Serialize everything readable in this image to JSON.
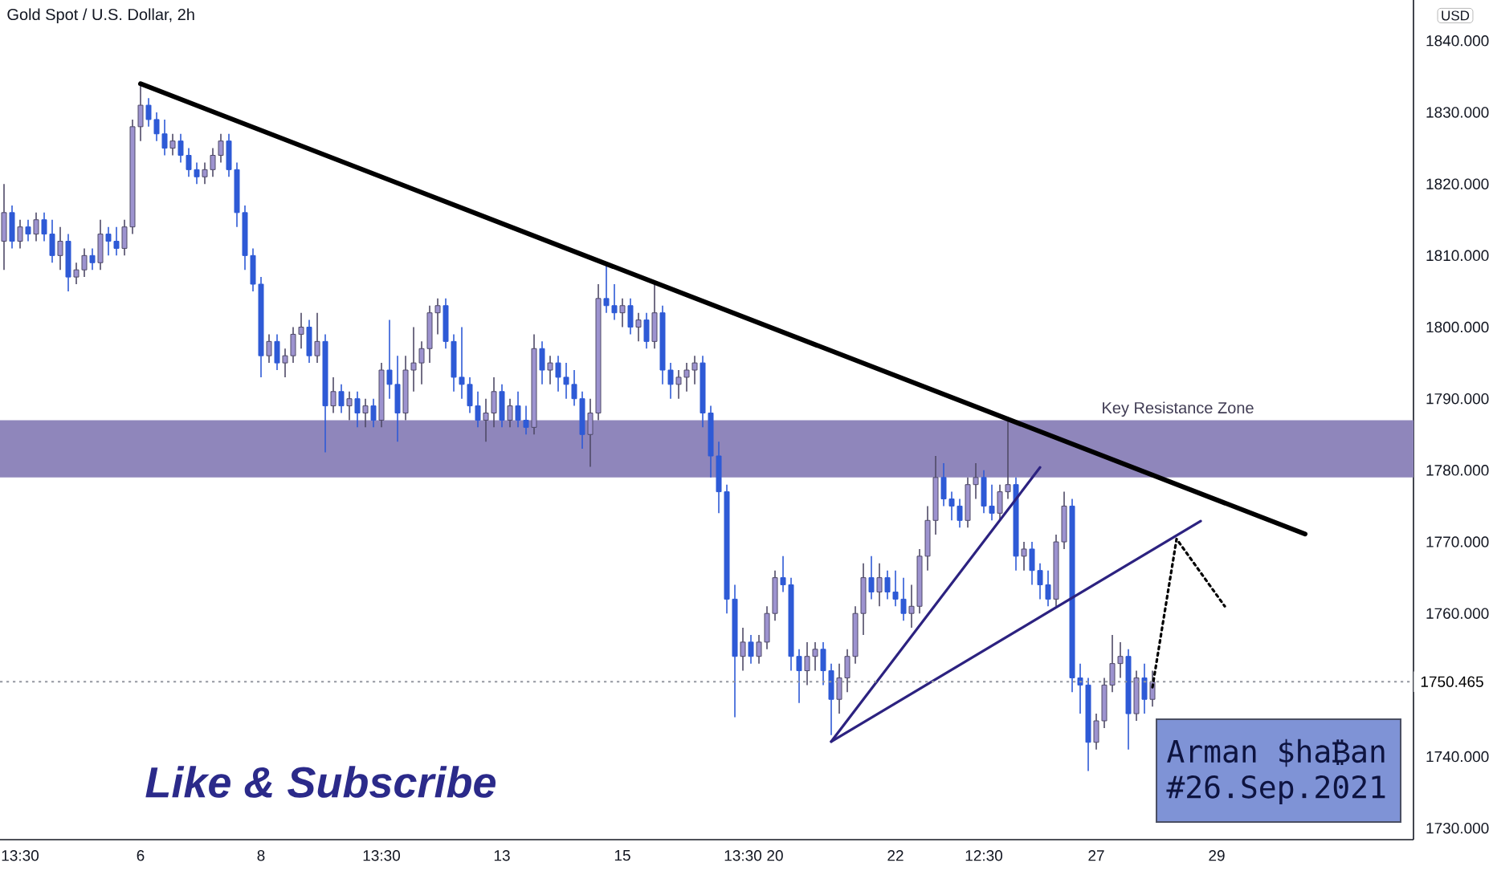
{
  "chart_data": {
    "type": "candlestick",
    "title": "Gold Spot / U.S. Dollar, 2h",
    "ylabel": "USD",
    "categories": [
      null,
      null,
      "13:30",
      null,
      null,
      null,
      null,
      null,
      null,
      null,
      null,
      null,
      null,
      null,
      null,
      null,
      null,
      "6",
      null,
      null,
      null,
      null,
      null,
      null,
      null,
      null,
      null,
      null,
      null,
      null,
      null,
      null,
      "8",
      null,
      null,
      null,
      null,
      null,
      null,
      null,
      null,
      null,
      null,
      null,
      null,
      null,
      null,
      "13:30",
      null,
      null,
      null,
      null,
      null,
      null,
      null,
      null,
      null,
      null,
      null,
      null,
      null,
      null,
      "13",
      null,
      null,
      null,
      null,
      null,
      null,
      null,
      null,
      null,
      null,
      null,
      null,
      null,
      null,
      "15",
      null,
      null,
      null,
      null,
      null,
      null,
      null,
      null,
      null,
      null,
      null,
      null,
      null,
      null,
      "13:30",
      null,
      null,
      null,
      "20",
      null,
      null,
      null,
      null,
      null,
      null,
      null,
      null,
      null,
      null,
      null,
      null,
      null,
      null,
      "22",
      null,
      null,
      null,
      null,
      null,
      null,
      null,
      null,
      null,
      null,
      "12:30",
      null,
      null,
      null,
      null,
      null,
      null,
      null,
      null,
      null,
      null,
      null,
      null,
      null,
      "27",
      null,
      null,
      null,
      null,
      null,
      null,
      null,
      null,
      null,
      null,
      null,
      null,
      null,
      null,
      "29",
      null,
      null,
      null,
      null,
      null,
      null,
      null,
      null,
      null,
      null,
      null,
      null,
      null,
      null,
      null,
      null,
      null,
      null,
      null,
      null,
      null,
      null,
      null,
      null
    ],
    "ohlc": [
      [
        1812,
        1820,
        1808,
        1816
      ],
      [
        1816,
        1817,
        1811,
        1812
      ],
      [
        1812,
        1815,
        1811,
        1814
      ],
      [
        1814,
        1815,
        1812,
        1813
      ],
      [
        1813,
        1816,
        1812,
        1815
      ],
      [
        1815,
        1816,
        1812,
        1813
      ],
      [
        1813,
        1815,
        1809,
        1810
      ],
      [
        1810,
        1814,
        1808,
        1812
      ],
      [
        1812,
        1813,
        1805,
        1807
      ],
      [
        1807,
        1809,
        1806,
        1808
      ],
      [
        1808,
        1811,
        1807,
        1810
      ],
      [
        1810,
        1811,
        1808,
        1809
      ],
      [
        1809,
        1815,
        1808,
        1813
      ],
      [
        1813,
        1814,
        1810,
        1812
      ],
      [
        1812,
        1814,
        1810,
        1811
      ],
      [
        1811,
        1815,
        1810,
        1814
      ],
      [
        1814,
        1829,
        1813,
        1828
      ],
      [
        1828,
        1834,
        1826,
        1831
      ],
      [
        1831,
        1832,
        1828,
        1829
      ],
      [
        1829,
        1830,
        1826,
        1827
      ],
      [
        1827,
        1829,
        1824,
        1825
      ],
      [
        1825,
        1827,
        1824,
        1826
      ],
      [
        1826,
        1827,
        1823,
        1824
      ],
      [
        1824,
        1825,
        1821,
        1822
      ],
      [
        1822,
        1823,
        1820,
        1821
      ],
      [
        1821,
        1823,
        1820,
        1822
      ],
      [
        1822,
        1825,
        1821,
        1824
      ],
      [
        1824,
        1827,
        1823,
        1826
      ],
      [
        1826,
        1827,
        1821,
        1822
      ],
      [
        1822,
        1823,
        1814,
        1816
      ],
      [
        1816,
        1817,
        1808,
        1810
      ],
      [
        1810,
        1811,
        1805,
        1806
      ],
      [
        1806,
        1807,
        1793,
        1796
      ],
      [
        1796,
        1799,
        1795,
        1798
      ],
      [
        1798,
        1799,
        1794,
        1795
      ],
      [
        1795,
        1797,
        1793,
        1796
      ],
      [
        1796,
        1800,
        1795,
        1799
      ],
      [
        1799,
        1802,
        1797,
        1800
      ],
      [
        1800,
        1801,
        1795,
        1796
      ],
      [
        1796,
        1802,
        1795,
        1798
      ],
      [
        1798,
        1799,
        1782.5,
        1789
      ],
      [
        1789,
        1793,
        1788,
        1791
      ],
      [
        1791,
        1792,
        1788,
        1789
      ],
      [
        1789,
        1791,
        1787,
        1790
      ],
      [
        1790,
        1791,
        1786,
        1788
      ],
      [
        1788,
        1790,
        1786,
        1789
      ],
      [
        1789,
        1790,
        1786,
        1787
      ],
      [
        1787,
        1795,
        1786,
        1794
      ],
      [
        1794,
        1801,
        1790,
        1792
      ],
      [
        1792,
        1796,
        1784,
        1788
      ],
      [
        1788,
        1796,
        1787,
        1794
      ],
      [
        1794,
        1800,
        1791,
        1795
      ],
      [
        1795,
        1798,
        1792,
        1797
      ],
      [
        1797,
        1803,
        1795,
        1802
      ],
      [
        1802,
        1804,
        1799,
        1803
      ],
      [
        1803,
        1804,
        1797,
        1798
      ],
      [
        1798,
        1799,
        1791,
        1793
      ],
      [
        1793,
        1800,
        1790,
        1792
      ],
      [
        1792,
        1793,
        1788,
        1789
      ],
      [
        1789,
        1791,
        1786,
        1787
      ],
      [
        1787,
        1790,
        1784,
        1788
      ],
      [
        1788,
        1793,
        1786,
        1791
      ],
      [
        1791,
        1792,
        1786,
        1787
      ],
      [
        1787,
        1790,
        1786,
        1789
      ],
      [
        1789,
        1791,
        1786,
        1787
      ],
      [
        1787,
        1789,
        1785,
        1786
      ],
      [
        1786,
        1799,
        1785,
        1797
      ],
      [
        1797,
        1798,
        1792,
        1794
      ],
      [
        1794,
        1796,
        1792,
        1795
      ],
      [
        1795,
        1796,
        1791,
        1793
      ],
      [
        1793,
        1795,
        1790,
        1792
      ],
      [
        1792,
        1794,
        1789,
        1790
      ],
      [
        1790,
        1791,
        1783,
        1785
      ],
      [
        1785,
        1790,
        1780.5,
        1788
      ],
      [
        1788,
        1806,
        1787,
        1804
      ],
      [
        1804,
        1809,
        1802,
        1803
      ],
      [
        1803,
        1806,
        1801,
        1802
      ],
      [
        1802,
        1804,
        1800,
        1803
      ],
      [
        1803,
        1804,
        1799,
        1800
      ],
      [
        1800,
        1802,
        1798,
        1801
      ],
      [
        1801,
        1802,
        1797,
        1798
      ],
      [
        1798,
        1806,
        1797,
        1802
      ],
      [
        1802,
        1803,
        1792,
        1794
      ],
      [
        1794,
        1795,
        1790,
        1792
      ],
      [
        1792,
        1794,
        1790,
        1793
      ],
      [
        1793,
        1795,
        1791,
        1794
      ],
      [
        1794,
        1796,
        1792,
        1795
      ],
      [
        1795,
        1796,
        1786,
        1788
      ],
      [
        1788,
        1789,
        1779,
        1782
      ],
      [
        1782,
        1784,
        1774,
        1777
      ],
      [
        1777,
        1778,
        1760,
        1762
      ],
      [
        1762,
        1764,
        1745.5,
        1754
      ],
      [
        1754,
        1758,
        1752,
        1756
      ],
      [
        1756,
        1757,
        1753,
        1754
      ],
      [
        1754,
        1757,
        1753,
        1756
      ],
      [
        1756,
        1761,
        1755,
        1760
      ],
      [
        1760,
        1766,
        1759,
        1765
      ],
      [
        1765,
        1768,
        1763,
        1764
      ],
      [
        1764,
        1765,
        1752,
        1754
      ],
      [
        1754,
        1755,
        1747.5,
        1752
      ],
      [
        1752,
        1756,
        1750,
        1754
      ],
      [
        1754,
        1756,
        1752,
        1755
      ],
      [
        1755,
        1756,
        1750,
        1752
      ],
      [
        1752,
        1753,
        1743,
        1748
      ],
      [
        1748,
        1753,
        1746,
        1751
      ],
      [
        1751,
        1755,
        1749,
        1754
      ],
      [
        1754,
        1761,
        1753,
        1760
      ],
      [
        1760,
        1767,
        1757,
        1765
      ],
      [
        1765,
        1768,
        1762,
        1763
      ],
      [
        1763,
        1767,
        1761,
        1765
      ],
      [
        1765,
        1766,
        1762,
        1763
      ],
      [
        1763,
        1766,
        1761,
        1762
      ],
      [
        1762,
        1765,
        1759,
        1760
      ],
      [
        1760,
        1764,
        1758,
        1761
      ],
      [
        1761,
        1769,
        1760,
        1768
      ],
      [
        1768,
        1775,
        1766,
        1773
      ],
      [
        1773,
        1782,
        1771,
        1779
      ],
      [
        1779,
        1781,
        1775,
        1776
      ],
      [
        1776,
        1777,
        1773,
        1775
      ],
      [
        1775,
        1776,
        1772,
        1773
      ],
      [
        1773,
        1779,
        1772,
        1778
      ],
      [
        1778,
        1781,
        1776,
        1779
      ],
      [
        1779,
        1780,
        1774,
        1775
      ],
      [
        1775,
        1778,
        1773,
        1774
      ],
      [
        1774,
        1778,
        1773,
        1777
      ],
      [
        1777,
        1787.5,
        1776,
        1778
      ],
      [
        1778,
        1779,
        1766,
        1768
      ],
      [
        1768,
        1770,
        1766,
        1769
      ],
      [
        1769,
        1770,
        1764,
        1766
      ],
      [
        1766,
        1767,
        1762,
        1764
      ],
      [
        1764,
        1766,
        1761,
        1762
      ],
      [
        1762,
        1771,
        1761,
        1770
      ],
      [
        1770,
        1777,
        1769,
        1775
      ],
      [
        1775,
        1776,
        1749,
        1751
      ],
      [
        1751,
        1753,
        1746,
        1750
      ],
      [
        1750,
        1751,
        1738,
        1742
      ],
      [
        1742,
        1746,
        1741,
        1745
      ],
      [
        1745,
        1751,
        1744,
        1750
      ],
      [
        1750,
        1757,
        1749,
        1753
      ],
      [
        1753,
        1756,
        1751,
        1754
      ],
      [
        1754,
        1755,
        1741,
        1746
      ],
      [
        1746,
        1752,
        1745,
        1751
      ],
      [
        1751,
        1753,
        1746,
        1748
      ],
      [
        1748,
        1752,
        1747,
        1750.465
      ],
      null,
      null,
      null,
      null,
      null,
      null,
      null,
      null,
      null,
      null,
      null,
      null,
      null,
      null,
      null,
      null,
      null,
      null,
      null,
      null,
      null,
      null,
      null,
      null,
      null,
      null,
      null,
      null,
      null,
      null,
      null,
      null
    ],
    "colors": [
      "#9d93cf",
      "#2e5ad6",
      "#9d93cf",
      "#2e5ad6",
      "#9d93cf",
      "#2e5ad6",
      "#2e5ad6",
      "#9d93cf",
      "#2e5ad6",
      "#9d93cf",
      "#9d93cf",
      "#2e5ad6",
      "#9d93cf",
      "#2e5ad6",
      "#2e5ad6",
      "#9d93cf",
      "#9d93cf",
      "#9d93cf",
      "#2e5ad6",
      "#2e5ad6",
      "#2e5ad6",
      "#9d93cf",
      "#2e5ad6",
      "#2e5ad6",
      "#2e5ad6",
      "#9d93cf",
      "#9d93cf",
      "#9d93cf",
      "#2e5ad6",
      "#2e5ad6",
      "#2e5ad6",
      "#2e5ad6",
      "#2e5ad6",
      "#9d93cf",
      "#2e5ad6",
      "#9d93cf",
      "#9d93cf",
      "#9d93cf",
      "#2e5ad6",
      "#9d93cf",
      "#2e5ad6",
      "#9d93cf",
      "#2e5ad6",
      "#9d93cf",
      "#2e5ad6",
      "#9d93cf",
      "#2e5ad6",
      "#9d93cf",
      "#2e5ad6",
      "#2e5ad6",
      "#9d93cf",
      "#9d93cf",
      "#9d93cf",
      "#9d93cf",
      "#9d93cf",
      "#2e5ad6",
      "#2e5ad6",
      "#2e5ad6",
      "#2e5ad6",
      "#2e5ad6",
      "#9d93cf",
      "#9d93cf",
      "#2e5ad6",
      "#9d93cf",
      "#2e5ad6",
      "#2e5ad6",
      "#9d93cf",
      "#2e5ad6",
      "#9d93cf",
      "#2e5ad6",
      "#2e5ad6",
      "#2e5ad6",
      "#2e5ad6",
      "#9d93cf",
      "#9d93cf",
      "#2e5ad6",
      "#2e5ad6",
      "#9d93cf",
      "#2e5ad6",
      "#9d93cf",
      "#2e5ad6",
      "#9d93cf",
      "#2e5ad6",
      "#2e5ad6",
      "#9d93cf",
      "#9d93cf",
      "#9d93cf",
      "#2e5ad6",
      "#2e5ad6",
      "#2e5ad6",
      "#2e5ad6",
      "#2e5ad6",
      "#9d93cf",
      "#2e5ad6",
      "#9d93cf",
      "#9d93cf",
      "#9d93cf",
      "#2e5ad6",
      "#2e5ad6",
      "#2e5ad6",
      "#9d93cf",
      "#9d93cf",
      "#2e5ad6",
      "#2e5ad6",
      "#9d93cf",
      "#9d93cf",
      "#9d93cf",
      "#9d93cf",
      "#2e5ad6",
      "#9d93cf",
      "#2e5ad6",
      "#2e5ad6",
      "#2e5ad6",
      "#9d93cf",
      "#9d93cf",
      "#9d93cf",
      "#9d93cf",
      "#2e5ad6",
      "#2e5ad6",
      "#2e5ad6",
      "#9d93cf",
      "#9d93cf",
      "#2e5ad6",
      "#2e5ad6",
      "#9d93cf",
      "#9d93cf",
      "#2e5ad6",
      "#9d93cf",
      "#2e5ad6",
      "#2e5ad6",
      "#2e5ad6",
      "#9d93cf",
      "#9d93cf",
      "#2e5ad6",
      "#2e5ad6",
      "#2e5ad6",
      "#9d93cf",
      "#9d93cf",
      "#9d93cf",
      "#9d93cf",
      "#2e5ad6",
      "#9d93cf",
      "#2e5ad6",
      "#9d93cf",
      null,
      null,
      null,
      null,
      null,
      null,
      null,
      null,
      null,
      null,
      null,
      null,
      null,
      null,
      null,
      null,
      null,
      null,
      null,
      null,
      null,
      null,
      null,
      null,
      null,
      null,
      null,
      null,
      null,
      null,
      null,
      null
    ],
    "series": [
      {
        "type": "line",
        "color": "#000000",
        "values": [
          null,
          null,
          null,
          null,
          null,
          null,
          null,
          null,
          null,
          null,
          null,
          null,
          null,
          null,
          null,
          null,
          null,
          1834,
          null,
          null,
          null,
          null,
          null,
          null,
          null,
          null,
          null,
          null,
          null,
          null,
          null,
          null,
          null,
          null,
          null,
          null,
          null,
          null,
          null,
          null,
          null,
          null,
          null,
          null,
          null,
          null,
          null,
          null,
          null,
          null,
          null,
          null,
          null,
          null,
          null,
          null,
          null,
          null,
          null,
          null,
          null,
          null,
          null,
          null,
          null,
          null,
          null,
          null,
          null,
          null,
          null,
          null,
          null,
          null,
          null,
          null,
          null,
          null,
          null,
          null,
          null,
          null,
          null,
          null,
          null,
          null,
          null,
          null,
          null,
          null,
          null,
          null,
          null,
          null,
          null,
          null,
          null,
          null,
          null,
          null,
          null,
          null,
          null,
          null,
          null,
          null,
          null,
          null,
          null,
          null,
          null,
          null,
          null,
          null,
          null,
          null,
          null,
          null,
          null,
          null,
          null,
          null,
          null,
          null,
          null,
          null,
          null,
          null,
          null,
          null,
          null,
          null,
          null,
          null,
          null,
          null,
          null,
          null,
          null,
          null,
          null,
          null,
          null,
          null,
          null,
          null,
          null,
          null,
          null,
          null,
          null,
          null,
          null,
          null,
          null,
          null,
          null,
          null,
          null,
          null,
          null,
          null,
          1771.1,
          null,
          null,
          null,
          null,
          null,
          null,
          null,
          null,
          null,
          null,
          null,
          null,
          null
        ]
      },
      {
        "type": "line",
        "color": "#2c2280",
        "values": [
          null,
          null,
          null,
          null,
          null,
          null,
          null,
          null,
          null,
          null,
          null,
          null,
          null,
          null,
          null,
          null,
          null,
          null,
          null,
          null,
          null,
          null,
          null,
          null,
          null,
          null,
          null,
          null,
          null,
          null,
          null,
          null,
          null,
          null,
          null,
          null,
          null,
          null,
          null,
          null,
          null,
          null,
          null,
          null,
          null,
          null,
          null,
          null,
          null,
          null,
          null,
          null,
          null,
          null,
          null,
          null,
          null,
          null,
          null,
          null,
          null,
          null,
          null,
          null,
          null,
          null,
          null,
          null,
          null,
          null,
          null,
          null,
          null,
          null,
          null,
          null,
          null,
          null,
          null,
          null,
          null,
          null,
          null,
          null,
          null,
          null,
          null,
          null,
          null,
          null,
          null,
          null,
          null,
          null,
          null,
          null,
          null,
          null,
          null,
          null,
          null,
          null,
          null,
          1742.1,
          null,
          null,
          null,
          null,
          null,
          null,
          null,
          null,
          null,
          null,
          null,
          null,
          null,
          null,
          null,
          null,
          null,
          null,
          null,
          null,
          null,
          null,
          null,
          null,
          null,
          1780.4,
          null,
          null,
          null,
          null,
          null,
          null,
          null,
          null,
          null,
          null,
          null,
          null,
          null,
          null,
          null,
          null,
          null,
          null,
          null,
          null,
          null,
          null,
          null,
          null,
          null,
          null,
          null,
          null,
          null,
          null,
          null,
          null,
          null,
          null,
          null,
          null,
          null,
          null,
          null,
          null,
          null,
          null,
          null,
          null,
          null,
          null
        ]
      },
      {
        "type": "line",
        "color": "#2c2280",
        "values": [
          null,
          null,
          null,
          null,
          null,
          null,
          null,
          null,
          null,
          null,
          null,
          null,
          null,
          null,
          null,
          null,
          null,
          null,
          null,
          null,
          null,
          null,
          null,
          null,
          null,
          null,
          null,
          null,
          null,
          null,
          null,
          null,
          null,
          null,
          null,
          null,
          null,
          null,
          null,
          null,
          null,
          null,
          null,
          null,
          null,
          null,
          null,
          null,
          null,
          null,
          null,
          null,
          null,
          null,
          null,
          null,
          null,
          null,
          null,
          null,
          null,
          null,
          null,
          null,
          null,
          null,
          null,
          null,
          null,
          null,
          null,
          null,
          null,
          null,
          null,
          null,
          null,
          null,
          null,
          null,
          null,
          null,
          null,
          null,
          null,
          null,
          null,
          null,
          null,
          null,
          null,
          null,
          null,
          null,
          null,
          null,
          null,
          null,
          null,
          null,
          null,
          null,
          null,
          1742.1,
          null,
          null,
          null,
          null,
          null,
          null,
          null,
          null,
          null,
          null,
          null,
          null,
          null,
          null,
          null,
          null,
          null,
          null,
          null,
          null,
          null,
          null,
          null,
          null,
          null,
          null,
          null,
          null,
          null,
          null,
          null,
          null,
          null,
          null,
          null,
          null,
          null,
          null,
          null,
          null,
          null,
          null,
          null,
          null,
          null,
          1772.9,
          null,
          null,
          null,
          null,
          null,
          null,
          null,
          null,
          null,
          null,
          null,
          null,
          null,
          null,
          null,
          null,
          null,
          null,
          null,
          null,
          null,
          null,
          null,
          null,
          null,
          null
        ]
      },
      {
        "type": "line",
        "color": "#000000",
        "line_style": "dotted",
        "values": [
          null,
          null,
          null,
          null,
          null,
          null,
          null,
          null,
          null,
          null,
          null,
          null,
          null,
          null,
          null,
          null,
          null,
          null,
          null,
          null,
          null,
          null,
          null,
          null,
          null,
          null,
          null,
          null,
          null,
          null,
          null,
          null,
          null,
          null,
          null,
          null,
          null,
          null,
          null,
          null,
          null,
          null,
          null,
          null,
          null,
          null,
          null,
          null,
          null,
          null,
          null,
          null,
          null,
          null,
          null,
          null,
          null,
          null,
          null,
          null,
          null,
          null,
          null,
          null,
          null,
          null,
          null,
          null,
          null,
          null,
          null,
          null,
          null,
          null,
          null,
          null,
          null,
          null,
          null,
          null,
          null,
          null,
          null,
          null,
          null,
          null,
          null,
          null,
          null,
          null,
          null,
          null,
          null,
          null,
          null,
          null,
          null,
          null,
          null,
          null,
          null,
          null,
          null,
          null,
          null,
          null,
          null,
          null,
          null,
          null,
          null,
          null,
          null,
          null,
          null,
          null,
          null,
          null,
          null,
          null,
          null,
          null,
          null,
          null,
          null,
          null,
          null,
          null,
          null,
          null,
          null,
          null,
          null,
          null,
          null,
          null,
          null,
          null,
          null,
          null,
          null,
          null,
          null,
          1749.7,
          null,
          null,
          1770.4,
          null,
          null,
          null,
          null,
          null,
          1761,
          null,
          null,
          null,
          null,
          null,
          null,
          null,
          null,
          null,
          null,
          null,
          null,
          null,
          null,
          null,
          null,
          null,
          null,
          null,
          null,
          null,
          null,
          null
        ]
      }
    ],
    "ylim": [
      1728.4,
      1845.7
    ],
    "yticks": [
      {
        "value": 1730,
        "label": "1730.000"
      },
      {
        "value": 1740,
        "label": "1740.000"
      },
      {
        "value": 1760,
        "label": "1760.000"
      },
      {
        "value": 1770,
        "label": "1770.000"
      },
      {
        "value": 1780,
        "label": "1780.000"
      },
      {
        "value": 1790,
        "label": "1790.000"
      },
      {
        "value": 1800,
        "label": "1800.000"
      },
      {
        "value": 1810,
        "label": "1810.000"
      },
      {
        "value": 1820,
        "label": "1820.000"
      },
      {
        "value": 1830,
        "label": "1830.000"
      },
      {
        "value": 1840,
        "label": "1840.000"
      }
    ],
    "bands": [
      {
        "axis": "y",
        "from": 1779,
        "to": 1787,
        "label": "Key Resistance Zone",
        "color": "#8f86bb"
      }
    ],
    "ref_lines": [
      {
        "axis": "y",
        "value": 1750.465,
        "label": "1750.465",
        "color": "#9598a1",
        "line_style": "dotted"
      }
    ],
    "annotations": [
      "Like & Subscribe",
      "Arman $ha₿an",
      "#26.Sep.2021"
    ]
  }
}
